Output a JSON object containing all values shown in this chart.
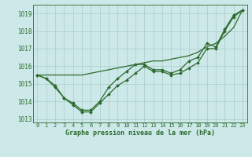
{
  "xlabel": "Graphe pression niveau de la mer (hPa)",
  "hours": [
    0,
    1,
    2,
    3,
    4,
    5,
    6,
    7,
    8,
    9,
    10,
    11,
    12,
    13,
    14,
    15,
    16,
    17,
    18,
    19,
    20,
    21,
    22,
    23
  ],
  "line1": [
    1015.5,
    1015.3,
    1014.8,
    1014.2,
    1013.8,
    1013.4,
    1013.4,
    1013.9,
    1014.4,
    1014.9,
    1015.2,
    1015.6,
    1016.0,
    1015.7,
    1015.7,
    1015.5,
    1015.6,
    1015.9,
    1016.2,
    1017.0,
    1017.0,
    1018.0,
    1018.8,
    1019.2
  ],
  "line2": [
    1015.5,
    1015.3,
    1014.9,
    1014.2,
    1013.9,
    1013.5,
    1013.5,
    1014.0,
    1014.8,
    1015.3,
    1015.7,
    1016.1,
    1016.1,
    1015.8,
    1015.8,
    1015.6,
    1015.8,
    1016.3,
    1016.5,
    1017.3,
    1017.1,
    1018.1,
    1018.9,
    1019.2
  ],
  "line3": [
    1015.5,
    1015.5,
    1015.5,
    1015.5,
    1015.5,
    1015.5,
    1015.6,
    1015.7,
    1015.8,
    1015.9,
    1016.0,
    1016.1,
    1016.2,
    1016.3,
    1016.3,
    1016.4,
    1016.5,
    1016.6,
    1016.8,
    1017.1,
    1017.3,
    1017.7,
    1018.2,
    1019.2
  ],
  "line_color": "#2d6a2d",
  "bg_color": "#cce8e8",
  "grid_color": "#aacccc",
  "ylim": [
    1012.8,
    1019.5
  ],
  "yticks": [
    1013,
    1014,
    1015,
    1016,
    1017,
    1018,
    1019
  ],
  "marker_size": 2.0,
  "linewidth": 0.9
}
